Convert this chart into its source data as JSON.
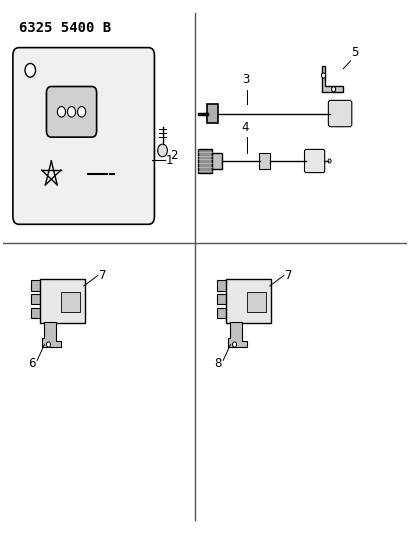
{
  "title": "6325 5400 B",
  "background_color": "#ffffff",
  "line_color": "#000000",
  "divider_color": "#555555",
  "fig_width": 4.1,
  "fig_height": 5.33,
  "dpi": 100,
  "title_fontsize": 10,
  "label_fontsize": 8.5
}
